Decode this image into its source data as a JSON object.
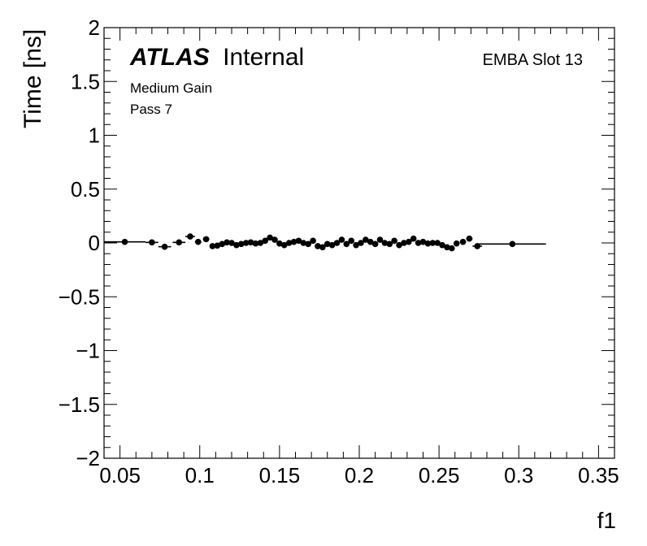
{
  "annotations": {
    "atlas": "ATLAS",
    "internal": "Internal",
    "gain": "Medium Gain",
    "pass": "Pass 7",
    "channel": "EMBA Slot 13"
  },
  "chart_data": {
    "type": "scatter",
    "title": "",
    "xlabel": "f1",
    "ylabel": "Time [ns]",
    "xlim": [
      0.04,
      0.36
    ],
    "ylim": [
      -2,
      2
    ],
    "x_ticks": [
      0.05,
      0.1,
      0.15,
      0.2,
      0.25,
      0.3,
      0.35
    ],
    "x_tick_labels": [
      "0.05",
      "0.1",
      "0.15",
      "0.2",
      "0.25",
      "0.3",
      "0.35"
    ],
    "y_ticks": [
      -2,
      -1.5,
      -1,
      -0.5,
      0,
      0.5,
      1,
      1.5,
      2
    ],
    "y_tick_labels": [
      "−2",
      "−1.5",
      "−1",
      "−0.5",
      "0",
      "0.5",
      "1",
      "1.5",
      "2"
    ],
    "grid": false,
    "marker_color": "#000000",
    "points": [
      {
        "x": 0.053,
        "y": 0.01,
        "xerr": 0.013,
        "yerr": 0.012
      },
      {
        "x": 0.07,
        "y": 0.005,
        "xerr": 0.004,
        "yerr": 0.012
      },
      {
        "x": 0.078,
        "y": -0.035,
        "xerr": 0.004,
        "yerr": 0.012
      },
      {
        "x": 0.087,
        "y": 0.005,
        "xerr": 0.004,
        "yerr": 0.012
      },
      {
        "x": 0.094,
        "y": 0.06,
        "xerr": 0.003,
        "yerr": 0.012
      },
      {
        "x": 0.099,
        "y": 0.01,
        "xerr": 0.002,
        "yerr": 0.012
      },
      {
        "x": 0.104,
        "y": 0.035,
        "xerr": 0.002,
        "yerr": 0.012
      },
      {
        "x": 0.108,
        "y": -0.03,
        "xerr": 0.0015,
        "yerr": 0.012
      },
      {
        "x": 0.111,
        "y": -0.025,
        "xerr": 0.0015,
        "yerr": 0.012
      },
      {
        "x": 0.114,
        "y": -0.01,
        "xerr": 0.0015,
        "yerr": 0.012
      },
      {
        "x": 0.117,
        "y": 0.005,
        "xerr": 0.0015,
        "yerr": 0.012
      },
      {
        "x": 0.12,
        "y": 0.0,
        "xerr": 0.0015,
        "yerr": 0.012
      },
      {
        "x": 0.123,
        "y": -0.02,
        "xerr": 0.0015,
        "yerr": 0.012
      },
      {
        "x": 0.126,
        "y": -0.01,
        "xerr": 0.0015,
        "yerr": 0.012
      },
      {
        "x": 0.129,
        "y": 0.0,
        "xerr": 0.0015,
        "yerr": 0.012
      },
      {
        "x": 0.132,
        "y": 0.005,
        "xerr": 0.0015,
        "yerr": 0.012
      },
      {
        "x": 0.135,
        "y": -0.005,
        "xerr": 0.0015,
        "yerr": 0.012
      },
      {
        "x": 0.138,
        "y": 0.0,
        "xerr": 0.0015,
        "yerr": 0.012
      },
      {
        "x": 0.141,
        "y": 0.02,
        "xerr": 0.0015,
        "yerr": 0.012
      },
      {
        "x": 0.144,
        "y": 0.05,
        "xerr": 0.0015,
        "yerr": 0.012
      },
      {
        "x": 0.147,
        "y": 0.03,
        "xerr": 0.0015,
        "yerr": 0.012
      },
      {
        "x": 0.15,
        "y": -0.005,
        "xerr": 0.0015,
        "yerr": 0.012
      },
      {
        "x": 0.153,
        "y": -0.02,
        "xerr": 0.0015,
        "yerr": 0.012
      },
      {
        "x": 0.156,
        "y": 0.0,
        "xerr": 0.0015,
        "yerr": 0.012
      },
      {
        "x": 0.159,
        "y": 0.01,
        "xerr": 0.0015,
        "yerr": 0.012
      },
      {
        "x": 0.162,
        "y": 0.02,
        "xerr": 0.0015,
        "yerr": 0.012
      },
      {
        "x": 0.165,
        "y": 0.0,
        "xerr": 0.0015,
        "yerr": 0.012
      },
      {
        "x": 0.168,
        "y": -0.01,
        "xerr": 0.0015,
        "yerr": 0.012
      },
      {
        "x": 0.171,
        "y": 0.02,
        "xerr": 0.0015,
        "yerr": 0.012
      },
      {
        "x": 0.174,
        "y": -0.03,
        "xerr": 0.0015,
        "yerr": 0.012
      },
      {
        "x": 0.177,
        "y": -0.04,
        "xerr": 0.0015,
        "yerr": 0.012
      },
      {
        "x": 0.18,
        "y": -0.01,
        "xerr": 0.0015,
        "yerr": 0.012
      },
      {
        "x": 0.183,
        "y": -0.02,
        "xerr": 0.0015,
        "yerr": 0.012
      },
      {
        "x": 0.186,
        "y": 0.0,
        "xerr": 0.0015,
        "yerr": 0.012
      },
      {
        "x": 0.189,
        "y": 0.03,
        "xerr": 0.0015,
        "yerr": 0.012
      },
      {
        "x": 0.192,
        "y": -0.01,
        "xerr": 0.0015,
        "yerr": 0.012
      },
      {
        "x": 0.195,
        "y": 0.02,
        "xerr": 0.0015,
        "yerr": 0.012
      },
      {
        "x": 0.198,
        "y": -0.02,
        "xerr": 0.0015,
        "yerr": 0.012
      },
      {
        "x": 0.201,
        "y": 0.0,
        "xerr": 0.0015,
        "yerr": 0.012
      },
      {
        "x": 0.204,
        "y": 0.03,
        "xerr": 0.0015,
        "yerr": 0.012
      },
      {
        "x": 0.207,
        "y": 0.01,
        "xerr": 0.0015,
        "yerr": 0.012
      },
      {
        "x": 0.21,
        "y": -0.01,
        "xerr": 0.0015,
        "yerr": 0.012
      },
      {
        "x": 0.213,
        "y": 0.03,
        "xerr": 0.0015,
        "yerr": 0.012
      },
      {
        "x": 0.216,
        "y": 0.0,
        "xerr": 0.0015,
        "yerr": 0.012
      },
      {
        "x": 0.219,
        "y": -0.01,
        "xerr": 0.0015,
        "yerr": 0.012
      },
      {
        "x": 0.222,
        "y": 0.02,
        "xerr": 0.0015,
        "yerr": 0.012
      },
      {
        "x": 0.225,
        "y": -0.02,
        "xerr": 0.0015,
        "yerr": 0.012
      },
      {
        "x": 0.228,
        "y": 0.0,
        "xerr": 0.0015,
        "yerr": 0.012
      },
      {
        "x": 0.231,
        "y": 0.01,
        "xerr": 0.0015,
        "yerr": 0.012
      },
      {
        "x": 0.234,
        "y": 0.04,
        "xerr": 0.0015,
        "yerr": 0.012
      },
      {
        "x": 0.237,
        "y": 0.0,
        "xerr": 0.0015,
        "yerr": 0.012
      },
      {
        "x": 0.24,
        "y": 0.01,
        "xerr": 0.0015,
        "yerr": 0.012
      },
      {
        "x": 0.243,
        "y": -0.005,
        "xerr": 0.0015,
        "yerr": 0.012
      },
      {
        "x": 0.246,
        "y": 0.0,
        "xerr": 0.0015,
        "yerr": 0.012
      },
      {
        "x": 0.249,
        "y": 0.0,
        "xerr": 0.0015,
        "yerr": 0.012
      },
      {
        "x": 0.252,
        "y": -0.02,
        "xerr": 0.0015,
        "yerr": 0.012
      },
      {
        "x": 0.255,
        "y": -0.04,
        "xerr": 0.0015,
        "yerr": 0.012
      },
      {
        "x": 0.258,
        "y": -0.05,
        "xerr": 0.0015,
        "yerr": 0.012
      },
      {
        "x": 0.261,
        "y": -0.005,
        "xerr": 0.0015,
        "yerr": 0.012
      },
      {
        "x": 0.265,
        "y": 0.01,
        "xerr": 0.002,
        "yerr": 0.012
      },
      {
        "x": 0.269,
        "y": 0.04,
        "xerr": 0.002,
        "yerr": 0.012
      },
      {
        "x": 0.274,
        "y": -0.03,
        "xerr": 0.003,
        "yerr": 0.012
      },
      {
        "x": 0.296,
        "y": -0.01,
        "xerr": 0.021,
        "yerr": 0.012
      }
    ]
  }
}
